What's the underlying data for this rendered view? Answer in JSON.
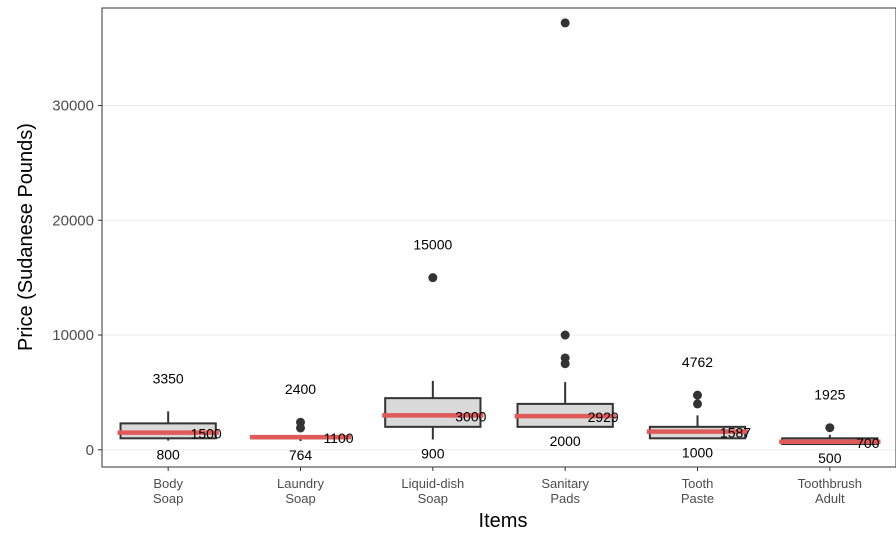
{
  "chart_data": {
    "type": "boxplot",
    "title": "",
    "xlabel": "Items",
    "ylabel": "Price (Sudanese Pounds)",
    "ylim": [
      -1500,
      38500
    ],
    "yticks": [
      0,
      10000,
      20000,
      30000
    ],
    "grid": true,
    "colors": {
      "box_fill": "#d9d9d9",
      "box_line": "#333333",
      "median_line": "#e05a5a",
      "outlier": "#333333",
      "grid": "#ebebeb",
      "panel_border": "#333333"
    },
    "categories": [
      {
        "lines": [
          "Body",
          "Soap"
        ],
        "q1": 1000,
        "median": 1500,
        "q3": 2300,
        "whisker_low": 800,
        "whisker_high": 3350,
        "outliers": [],
        "label_max": "3350",
        "label_median": "1500",
        "label_min": "800"
      },
      {
        "lines": [
          "Laundry",
          "Soap"
        ],
        "q1": 1000,
        "median": 1100,
        "q3": 1200,
        "whisker_low": 764,
        "whisker_high": 1300,
        "outliers": [
          1900,
          2400
        ],
        "label_max": "2400",
        "label_median": "1100",
        "label_min": "764"
      },
      {
        "lines": [
          "Liquid-dish",
          "Soap"
        ],
        "q1": 2000,
        "median": 3000,
        "q3": 4500,
        "whisker_low": 900,
        "whisker_high": 6000,
        "outliers": [
          15000
        ],
        "label_max": "15000",
        "label_median": "3000",
        "label_min": "900"
      },
      {
        "lines": [
          "Sanitary",
          "Pads"
        ],
        "q1": 2000,
        "median": 2929,
        "q3": 4000,
        "whisker_low": 2000,
        "whisker_high": 5900,
        "outliers": [
          7500,
          8000,
          10000,
          37200
        ],
        "label_max": "",
        "label_median": "2929",
        "label_min": "2000"
      },
      {
        "lines": [
          "Tooth",
          "Paste"
        ],
        "q1": 1000,
        "median": 1587,
        "q3": 2000,
        "whisker_low": 1000,
        "whisker_high": 3000,
        "outliers": [
          4000,
          4762
        ],
        "label_max": "4762",
        "label_median": "1587",
        "label_min": "1000"
      },
      {
        "lines": [
          "Toothbrush",
          "Adult"
        ],
        "q1": 500,
        "median": 700,
        "q3": 1000,
        "whisker_low": 500,
        "whisker_high": 1300,
        "outliers": [
          1925
        ],
        "label_max": "1925",
        "label_median": "700",
        "label_min": "500"
      }
    ]
  }
}
